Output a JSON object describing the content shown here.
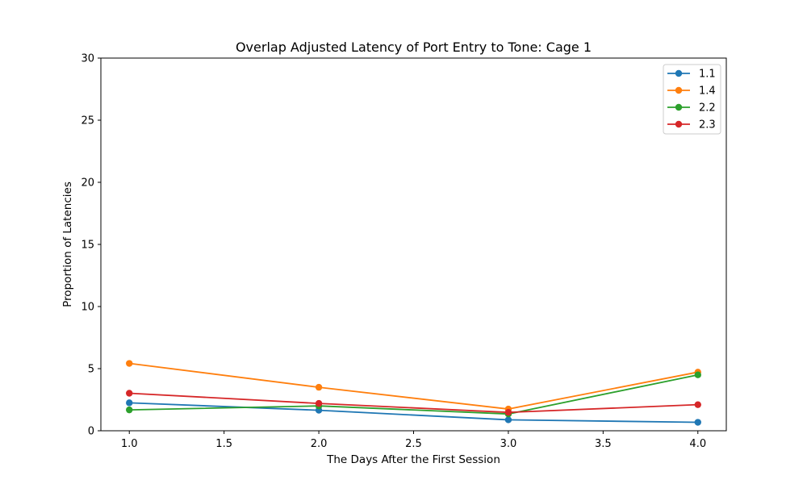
{
  "chart_data": {
    "type": "line",
    "title": "Overlap Adjusted Latency of Port Entry to Tone: Cage 1",
    "xlabel": "The Days After the First Session",
    "ylabel": "Proportion of Latencies",
    "x": [
      1.0,
      2.0,
      3.0,
      4.0
    ],
    "xlim": [
      0.85,
      4.15
    ],
    "ylim": [
      0,
      30
    ],
    "xticks": [
      1.0,
      1.5,
      2.0,
      2.5,
      3.0,
      3.5,
      4.0
    ],
    "xtick_labels": [
      "1.0",
      "1.5",
      "2.0",
      "2.5",
      "3.0",
      "3.5",
      "4.0"
    ],
    "yticks": [
      0,
      5,
      10,
      15,
      20,
      25,
      30
    ],
    "ytick_labels": [
      "0",
      "5",
      "10",
      "15",
      "20",
      "25",
      "30"
    ],
    "grid": false,
    "legend_position": "top-right",
    "series": [
      {
        "name": "1.1",
        "color": "#1f77b4",
        "values": [
          2.25,
          1.65,
          0.88,
          0.68
        ]
      },
      {
        "name": "1.4",
        "color": "#ff7f0e",
        "values": [
          5.42,
          3.5,
          1.75,
          4.72
        ]
      },
      {
        "name": "2.2",
        "color": "#2ca02c",
        "values": [
          1.68,
          2.0,
          1.35,
          4.5
        ]
      },
      {
        "name": "2.3",
        "color": "#d62728",
        "values": [
          3.02,
          2.2,
          1.48,
          2.1
        ]
      }
    ]
  }
}
